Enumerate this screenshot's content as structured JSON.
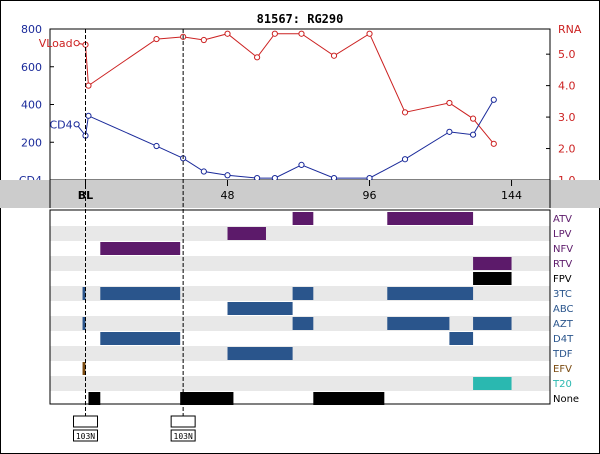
{
  "title": "81567: RG290",
  "colors": {
    "vload": "#cc2222",
    "cd4": "#1a2a9a",
    "time_band": "#cccccc",
    "row_alt": "#e8e8e8",
    "purple": "#5c1a6a",
    "blue": "#2a558c",
    "brown": "#7a4a10",
    "teal": "#2ab8b0",
    "black": "#000000"
  },
  "chart_data": [
    {
      "type": "line",
      "x_range": [
        -12,
        157
      ],
      "y_left": {
        "label": "CD4",
        "ticks": [
          "CD4",
          "200",
          "400",
          "600",
          "800"
        ],
        "tick_values": [
          0,
          200,
          400,
          600,
          800
        ],
        "ylim": [
          0,
          800
        ]
      },
      "y_right": {
        "label": "RNA",
        "ticks": [
          "1.0",
          "2.0",
          "3.0",
          "4.0",
          "5.0"
        ],
        "tick_values": [
          1,
          2,
          3,
          4,
          5
        ],
        "ylim": [
          1,
          5.8
        ]
      },
      "x_ticks": [
        "BL",
        "48",
        "96",
        "144"
      ],
      "x_tick_values": [
        0,
        48,
        96,
        144
      ],
      "markers": [
        0,
        33
      ],
      "series": [
        {
          "name": "VLoad",
          "axis": "right",
          "x": [
            -3,
            0,
            1,
            24,
            33,
            40,
            48,
            58,
            64,
            73,
            84,
            96,
            108,
            123,
            131,
            138
          ],
          "values": [
            5.35,
            5.3,
            4.0,
            5.48,
            5.55,
            5.45,
            5.65,
            4.9,
            5.65,
            5.65,
            4.95,
            5.65,
            3.15,
            3.45,
            2.95,
            2.15
          ]
        },
        {
          "name": "CD4",
          "axis": "left",
          "x": [
            -3,
            0,
            1,
            24,
            33,
            40,
            48,
            58,
            64,
            73,
            84,
            96,
            108,
            123,
            131,
            138
          ],
          "values": [
            295,
            235,
            340,
            180,
            115,
            45,
            25,
            10,
            10,
            80,
            10,
            10,
            110,
            255,
            240,
            425
          ]
        }
      ]
    },
    {
      "type": "gantt",
      "rows": [
        "ATV",
        "LPV",
        "NFV",
        "RTV",
        "FPV",
        "3TC",
        "ABC",
        "AZT",
        "D4T",
        "TDF",
        "EFV",
        "T20",
        "None"
      ],
      "row_label_colors": [
        "#5c1a6a",
        "#5c1a6a",
        "#5c1a6a",
        "#5c1a6a",
        "#000000",
        "#2a558c",
        "#2a558c",
        "#2a558c",
        "#2a558c",
        "#2a558c",
        "#7a4a10",
        "#2ab8b0",
        "#000000"
      ],
      "bars": [
        {
          "row": "ATV",
          "start": 70,
          "end": 77,
          "color": "purple"
        },
        {
          "row": "ATV",
          "start": 102,
          "end": 131,
          "color": "purple"
        },
        {
          "row": "LPV",
          "start": 48,
          "end": 61,
          "color": "purple"
        },
        {
          "row": "NFV",
          "start": 5,
          "end": 32,
          "color": "purple"
        },
        {
          "row": "RTV",
          "start": 131,
          "end": 144,
          "color": "purple"
        },
        {
          "row": "FPV",
          "start": 131,
          "end": 144,
          "color": "black"
        },
        {
          "row": "3TC",
          "start": -1,
          "end": 0,
          "color": "blue"
        },
        {
          "row": "3TC",
          "start": 5,
          "end": 32,
          "color": "blue"
        },
        {
          "row": "3TC",
          "start": 70,
          "end": 77,
          "color": "blue"
        },
        {
          "row": "3TC",
          "start": 102,
          "end": 131,
          "color": "blue"
        },
        {
          "row": "ABC",
          "start": 48,
          "end": 70,
          "color": "blue"
        },
        {
          "row": "AZT",
          "start": -1,
          "end": 0,
          "color": "blue"
        },
        {
          "row": "AZT",
          "start": 70,
          "end": 77,
          "color": "blue"
        },
        {
          "row": "AZT",
          "start": 102,
          "end": 123,
          "color": "blue"
        },
        {
          "row": "AZT",
          "start": 131,
          "end": 144,
          "color": "blue"
        },
        {
          "row": "D4T",
          "start": 5,
          "end": 32,
          "color": "blue"
        },
        {
          "row": "D4T",
          "start": 123,
          "end": 131,
          "color": "blue"
        },
        {
          "row": "TDF",
          "start": 48,
          "end": 70,
          "color": "blue"
        },
        {
          "row": "EFV",
          "start": -1,
          "end": 0,
          "color": "brown"
        },
        {
          "row": "T20",
          "start": 131,
          "end": 144,
          "color": "teal"
        },
        {
          "row": "None",
          "start": 1,
          "end": 5,
          "color": "black"
        },
        {
          "row": "None",
          "start": 32,
          "end": 50,
          "color": "black"
        },
        {
          "row": "None",
          "start": 77,
          "end": 101,
          "color": "black"
        }
      ]
    }
  ],
  "mutations": [
    {
      "label": "103N",
      "x": 0
    },
    {
      "label": "103N",
      "x": 33
    }
  ]
}
